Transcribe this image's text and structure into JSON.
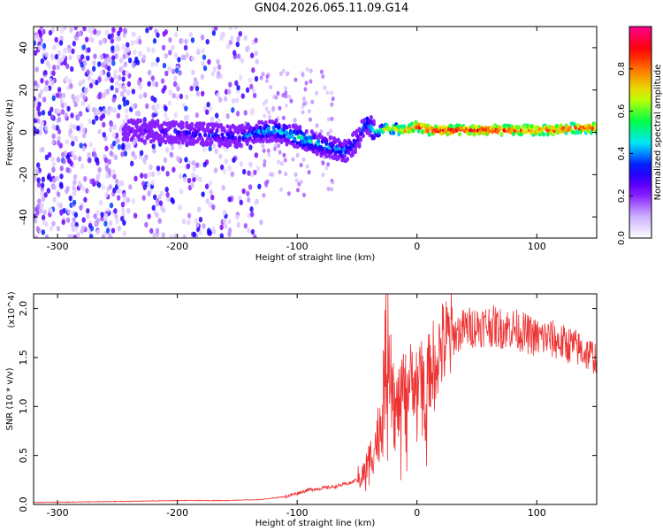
{
  "title": "GN04.2026.065.11.09.G14",
  "chart_data": [
    {
      "type": "heatmap",
      "name": "spectrogram",
      "title": "GN04.2026.065.11.09.G14",
      "xlabel": "Height of straight line (km)",
      "ylabel": "Frequency (Hz)",
      "xlim": [
        -320,
        150
      ],
      "ylim": [
        -50,
        50
      ],
      "xticks": [
        -300,
        -200,
        -100,
        0,
        100
      ],
      "yticks": [
        -40,
        -20,
        0,
        20,
        40
      ],
      "colorbar": {
        "label": "Normalized spectral amplitude",
        "range": [
          0.0,
          1.0
        ],
        "ticks": [
          0.0,
          0.2,
          0.4,
          0.6,
          0.8
        ],
        "tick_labels": [
          "0.0",
          "0.2",
          "0.4",
          "0.6",
          "0.8"
        ],
        "colors": [
          "#ffffff",
          "#c8a8ff",
          "#7a00ff",
          "#0000ff",
          "#00e5ff",
          "#00ff40",
          "#d8ff00",
          "#ff8c00",
          "#ff0000",
          "#ff0090"
        ]
      },
      "signal_track": {
        "x": [
          -245,
          -200,
          -150,
          -120,
          -100,
          -80,
          -60,
          -50,
          -42,
          -35,
          -25,
          -10,
          0,
          10,
          50,
          100,
          110,
          130,
          150
        ],
        "frequency": [
          1,
          0,
          -2,
          1,
          -2,
          -6,
          -9,
          -4,
          5,
          0,
          2,
          1,
          3,
          1,
          1,
          1,
          1,
          2,
          2
        ],
        "amplitude": [
          0.25,
          0.35,
          0.42,
          0.5,
          0.55,
          0.5,
          0.45,
          0.4,
          0.45,
          0.55,
          0.75,
          0.85,
          0.95,
          0.95,
          0.95,
          0.9,
          0.95,
          0.9,
          0.9
        ]
      },
      "noise_region_x": [
        -320,
        -130
      ]
    },
    {
      "type": "line",
      "name": "snr",
      "xlabel": "Height of straight line (km)",
      "ylabel": "SNR (10 * v/v)",
      "y_scale_label": "(x10^4)",
      "xlim": [
        -320,
        150
      ],
      "ylim": [
        0,
        2.15
      ],
      "xticks": [
        -300,
        -200,
        -100,
        0,
        100
      ],
      "yticks": [
        0.0,
        0.5,
        1.0,
        1.5,
        2.0
      ],
      "ytick_labels": [
        "0.0",
        "0.5",
        "1.0",
        "1.5",
        "2.0"
      ],
      "color": "#ee3333",
      "series": [
        {
          "name": "SNR",
          "x": [
            -320,
            -250,
            -200,
            -160,
            -130,
            -110,
            -90,
            -70,
            -55,
            -45,
            -40,
            -35,
            -30,
            -28,
            -26,
            -24,
            -22,
            -20,
            -18,
            -15,
            -12,
            -8,
            -5,
            0,
            5,
            10,
            15,
            20,
            30,
            40,
            50,
            60,
            70,
            80,
            90,
            100,
            110,
            120,
            130,
            140,
            150
          ],
          "y": [
            0.02,
            0.03,
            0.04,
            0.04,
            0.05,
            0.08,
            0.15,
            0.18,
            0.22,
            0.3,
            0.45,
            0.6,
            0.85,
            1.2,
            1.5,
            1.9,
            1.6,
            1.2,
            0.9,
            1.0,
            1.2,
            1.2,
            1.3,
            1.25,
            1.3,
            1.35,
            1.5,
            1.6,
            1.72,
            1.8,
            1.82,
            1.83,
            1.8,
            1.8,
            1.75,
            1.7,
            1.7,
            1.65,
            1.62,
            1.55,
            1.5
          ]
        }
      ]
    }
  ]
}
